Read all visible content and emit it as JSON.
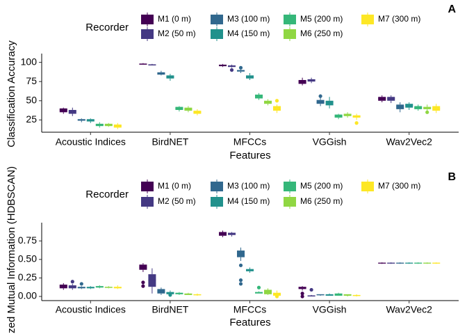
{
  "chart_data": [
    {
      "type": "box",
      "panel": "A",
      "legend_title": "Recorder",
      "x_label": "Features",
      "y_label": "Classification Accuracy",
      "categories": [
        "Acoustic Indices",
        "BirdNET",
        "MFCCs",
        "VGGish",
        "Wav2Vec2"
      ],
      "ylim": [
        9,
        106
      ],
      "yticks": [
        25,
        50,
        75,
        100
      ],
      "series": [
        {
          "name": "M1 (0 m)",
          "color": "#440154",
          "values": [
            [
              33,
              35,
              38,
              40,
              41
            ],
            [
              97,
              97,
              98,
              98,
              99
            ],
            [
              94,
              95,
              96,
              97,
              98
            ],
            [
              70,
              72,
              75,
              77,
              80
            ],
            [
              48,
              50,
              53,
              55,
              57
            ]
          ],
          "outliers": []
        },
        {
          "name": "M2 (50 m)",
          "color": "#443983",
          "values": [
            [
              30,
              33,
              36,
              38,
              41
            ],
            [
              96,
              96,
              97,
              97,
              98
            ],
            [
              93,
              94,
              95,
              96,
              97
            ],
            [
              73,
              75,
              77,
              78,
              80
            ],
            [
              47,
              50,
              53,
              55,
              57
            ]
          ],
          "outliers": [
            [
              2,
              90
            ]
          ]
        },
        {
          "name": "M3 (100 m)",
          "color": "#31688e",
          "values": [
            [
              22,
              24,
              25,
              26,
              27
            ],
            [
              83,
              84,
              85,
              87,
              89
            ],
            [
              86,
              88,
              89,
              90,
              92
            ],
            [
              43,
              46,
              48,
              51,
              54
            ],
            [
              35,
              39,
              42,
              45,
              48
            ]
          ],
          "outliers": [
            [
              2,
              93
            ],
            [
              3,
              56
            ]
          ]
        },
        {
          "name": "M4 (150 m)",
          "color": "#21918c",
          "values": [
            [
              21,
              23,
              24,
              26,
              27
            ],
            [
              76,
              79,
              81,
              83,
              85
            ],
            [
              77,
              79,
              81,
              83,
              86
            ],
            [
              40,
              44,
              48,
              50,
              55
            ],
            [
              38,
              41,
              44,
              46,
              48
            ]
          ],
          "outliers": []
        },
        {
          "name": "M5 (200 m)",
          "color": "#35b779",
          "values": [
            [
              15,
              17,
              19,
              20,
              22
            ],
            [
              36,
              38,
              40,
              42,
              43
            ],
            [
              51,
              53,
              55,
              58,
              60
            ],
            [
              26,
              28,
              30,
              32,
              33
            ],
            [
              37,
              39,
              41,
              43,
              45
            ]
          ],
          "outliers": []
        },
        {
          "name": "M6 (250 m)",
          "color": "#90d743",
          "values": [
            [
              16,
              17,
              18,
              20,
              21
            ],
            [
              35,
              37,
              39,
              41,
              43
            ],
            [
              44,
              46,
              48,
              50,
              52
            ],
            [
              28,
              30,
              32,
              33,
              35
            ],
            [
              37,
              39,
              41,
              42,
              45
            ]
          ],
          "outliers": [
            [
              4,
              35
            ]
          ]
        },
        {
          "name": "M7 (300 m)",
          "color": "#fde725",
          "values": [
            [
              13,
              15,
              17,
              19,
              21
            ],
            [
              31,
              33,
              35,
              37,
              39
            ],
            [
              34,
              37,
              40,
              43,
              45
            ],
            [
              25,
              28,
              30,
              31,
              33
            ],
            [
              34,
              37,
              40,
              43,
              46
            ]
          ],
          "outliers": [
            [
              2,
              50
            ],
            [
              3,
              21
            ]
          ]
        }
      ]
    },
    {
      "type": "box",
      "panel": "B",
      "legend_title": "Recorder",
      "x_label": "Features",
      "y_label": "zed Mutual Information (HDBSCAN)",
      "categories": [
        "Acoustic Indices",
        "BirdNET",
        "MFCCs",
        "VGGish",
        "Wav2Vec2"
      ],
      "ylim": [
        -0.056,
        0.94
      ],
      "yticks": [
        {
          "value": 0,
          "label": "0.00"
        },
        {
          "value": 0.25,
          "label": "0.25"
        },
        {
          "value": 0.5,
          "label": "0.50"
        },
        {
          "value": 0.75,
          "label": "0.75"
        }
      ],
      "series": [
        {
          "name": "M1 (0 m)",
          "color": "#440154",
          "values": [
            [
              0.09,
              0.11,
              0.14,
              0.16,
              0.18
            ],
            [
              0.33,
              0.36,
              0.39,
              0.43,
              0.45
            ],
            [
              0.8,
              0.82,
              0.84,
              0.87,
              0.89
            ],
            [
              0.08,
              0.1,
              0.12,
              0.13,
              0.14
            ],
            [
              0.44,
              0.445,
              0.45,
              0.455,
              0.46
            ]
          ],
          "outliers": [
            [
              1,
              0.14
            ],
            [
              1,
              0.19
            ],
            [
              3,
              0
            ],
            [
              3,
              0.04
            ]
          ]
        },
        {
          "name": "M2 (50 m)",
          "color": "#443983",
          "values": [
            [
              0.09,
              0.11,
              0.13,
              0.15,
              0.17
            ],
            [
              0.04,
              0.13,
              0.22,
              0.3,
              0.38
            ],
            [
              0.81,
              0.83,
              0.84,
              0.86,
              0.87
            ],
            [
              0,
              0,
              0.01,
              0.01,
              0.02
            ],
            [
              0.44,
              0.445,
              0.45,
              0.455,
              0.46
            ]
          ],
          "outliers": [
            [
              0,
              0.2
            ],
            [
              3,
              0.09
            ]
          ]
        },
        {
          "name": "M3 (100 m)",
          "color": "#31688e",
          "values": [
            [
              0.1,
              0.11,
              0.12,
              0.13,
              0.14
            ],
            [
              0.02,
              0.04,
              0.07,
              0.1,
              0.12
            ],
            [
              0.48,
              0.53,
              0.57,
              0.62,
              0.66
            ],
            [
              0.01,
              0.02,
              0.02,
              0.03,
              0.03
            ],
            [
              0.44,
              0.445,
              0.45,
              0.455,
              0.46
            ]
          ],
          "outliers": [
            [
              0,
              0.17
            ],
            [
              2,
              0.42
            ],
            [
              2,
              0.22
            ],
            [
              2,
              0.17
            ]
          ]
        },
        {
          "name": "M4 (150 m)",
          "color": "#21918c",
          "values": [
            [
              0.1,
              0.11,
              0.12,
              0.13,
              0.14
            ],
            [
              0.02,
              0.03,
              0.05,
              0.06,
              0.08
            ],
            [
              0.32,
              0.34,
              0.36,
              0.37,
              0.39
            ],
            [
              0.01,
              0.01,
              0.02,
              0.03,
              0.04
            ],
            [
              0.44,
              0.445,
              0.45,
              0.455,
              0.46
            ]
          ],
          "outliers": [
            [
              1,
              0.02
            ]
          ]
        },
        {
          "name": "M5 (200 m)",
          "color": "#35b779",
          "values": [
            [
              0.11,
              0.12,
              0.13,
              0.14,
              0.15
            ],
            [
              0.02,
              0.03,
              0.04,
              0.05,
              0.06
            ],
            [
              0.04,
              0.04,
              0.05,
              0.06,
              0.07
            ],
            [
              0.01,
              0.01,
              0.02,
              0.04,
              0.05
            ],
            [
              0.44,
              0.445,
              0.45,
              0.455,
              0.46
            ]
          ],
          "outliers": [
            [
              2,
              0.12
            ]
          ]
        },
        {
          "name": "M6 (250 m)",
          "color": "#90d743",
          "values": [
            [
              0.11,
              0.12,
              0.12,
              0.13,
              0.14
            ],
            [
              0.02,
              0.02,
              0.03,
              0.04,
              0.05
            ],
            [
              0.02,
              0.03,
              0.06,
              0.09,
              0.11
            ],
            [
              0,
              0.01,
              0.02,
              0.03,
              0.03
            ],
            [
              0.44,
              0.445,
              0.45,
              0.455,
              0.46
            ]
          ],
          "outliers": []
        },
        {
          "name": "M7 (300 m)",
          "color": "#fde725",
          "values": [
            [
              0.1,
              0.11,
              0.12,
              0.13,
              0.15
            ],
            [
              0.01,
              0.02,
              0.02,
              0.03,
              0.04
            ],
            [
              0,
              0.01,
              0.02,
              0.05,
              0.08
            ],
            [
              0,
              0.01,
              0.01,
              0.02,
              0.03
            ],
            [
              0.44,
              0.445,
              0.45,
              0.455,
              0.46
            ]
          ],
          "outliers": [
            [
              2,
              0
            ]
          ]
        }
      ]
    }
  ]
}
